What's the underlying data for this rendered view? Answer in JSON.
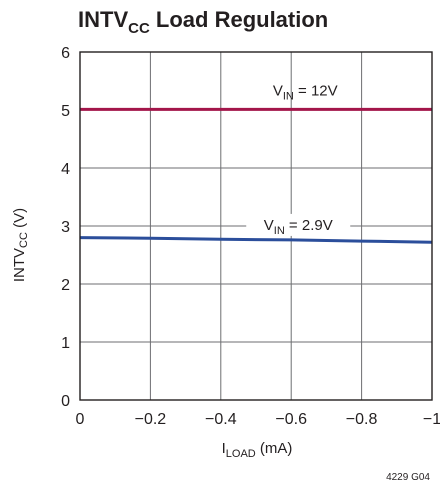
{
  "chart_data": {
    "type": "line",
    "title": {
      "main": "INTV",
      "sub": "CC",
      "rest": " Load Regulation"
    },
    "xlabel": {
      "main": "I",
      "sub": "LOAD",
      "rest": " (mA)"
    },
    "ylabel": {
      "main": "INTV",
      "sub": "CC",
      "rest": " (V)"
    },
    "xlim": [
      0,
      -1
    ],
    "ylim": [
      0,
      6
    ],
    "x_ticks": [
      0,
      -0.2,
      -0.4,
      -0.6,
      -0.8,
      -1
    ],
    "x_tick_labels": [
      "0",
      "−0.2",
      "−0.4",
      "−0.6",
      "−0.8",
      "−1"
    ],
    "y_ticks": [
      0,
      1,
      2,
      3,
      4,
      5,
      6
    ],
    "y_tick_labels": [
      "0",
      "1",
      "2",
      "3",
      "4",
      "5",
      "6"
    ],
    "grid": true,
    "series": [
      {
        "label": {
          "main": "V",
          "sub": "IN",
          "rest": " = 12V"
        },
        "color": "#a3154a",
        "x": [
          0,
          -0.2,
          -0.4,
          -0.6,
          -0.8,
          -1
        ],
        "y": [
          5.01,
          5.01,
          5.01,
          5.01,
          5.01,
          5.01
        ]
      },
      {
        "label": {
          "main": "V",
          "sub": "IN",
          "rest": " = 2.9V"
        },
        "color": "#2b4e9b",
        "x": [
          0,
          -0.2,
          -0.4,
          -0.6,
          -0.8,
          -1
        ],
        "y": [
          2.8,
          2.79,
          2.77,
          2.76,
          2.74,
          2.72
        ]
      }
    ],
    "figure_id": "4229 G04"
  }
}
